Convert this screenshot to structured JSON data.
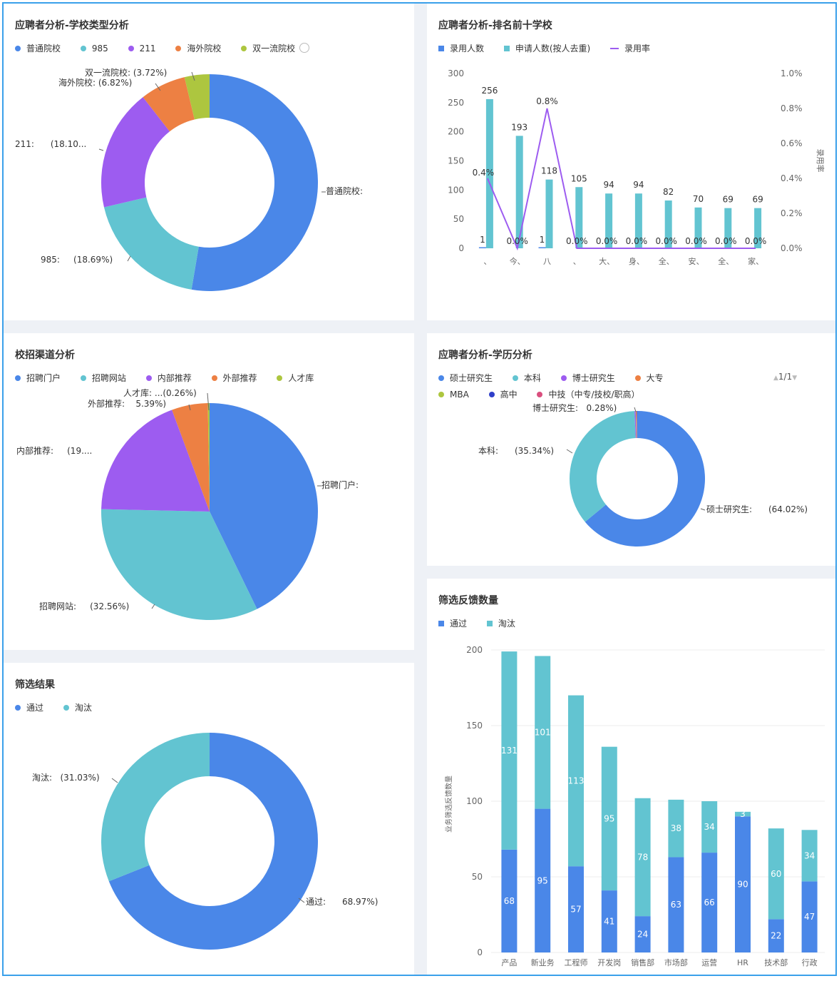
{
  "chart_data": [
    {
      "type": "pie",
      "title": "应聘者分析-学校类型分析",
      "legend_suffix_icon": "more-circle-icon",
      "slices": [
        {
          "name": "普通院校",
          "value": 52.67,
          "label": "普通院校:",
          "color": "#4a87e8"
        },
        {
          "name": "985",
          "value": 18.69,
          "label": "985:",
          "pct": "(18.69%)",
          "color": "#62c4d1"
        },
        {
          "name": "211",
          "value": 18.1,
          "label": "211:",
          "pct": "(18.10...",
          "color": "#9d5cf0"
        },
        {
          "name": "海外院校",
          "value": 6.82,
          "label": "海外院校:",
          "pct": "(6.82%)",
          "color": "#ed8043"
        },
        {
          "name": "双一流院校",
          "value": 3.72,
          "label": "双一流院校:",
          "pct": "(3.72%)",
          "color": "#adc63f"
        }
      ]
    },
    {
      "type": "bar",
      "title": "应聘者分析-排名前十学校",
      "legend": [
        "录用人数",
        "申请人数(按人去重)",
        "录用率"
      ],
      "categories": [
        "..",
        "..",
        "..",
        "..",
        "..",
        "..",
        "..",
        "..",
        "..",
        ".."
      ],
      "x_tick_labels": [
        "、",
        "今、",
        "八",
        "、",
        "大、",
        "身、",
        "全、",
        "安、",
        "全、",
        "家、"
      ],
      "series": [
        {
          "name": "录用人数",
          "values": [
            1,
            0,
            1,
            0,
            0,
            0,
            0,
            0,
            0,
            0
          ],
          "labels": [
            "1",
            "",
            "1",
            "",
            "",
            "",
            "",
            "",
            "",
            ""
          ],
          "color": "#4a87e8"
        },
        {
          "name": "申请人数(按人去重)",
          "values": [
            256,
            193,
            118,
            105,
            94,
            94,
            82,
            70,
            69,
            69
          ],
          "labels": [
            "256",
            "193",
            "118",
            "105",
            "94",
            "94",
            "82",
            "70",
            "69",
            "69"
          ],
          "color": "#62c4d1"
        },
        {
          "name": "录用率",
          "axis": "right",
          "values": [
            0.4,
            0.0,
            0.8,
            0.0,
            0.0,
            0.0,
            0.0,
            0.0,
            0.0,
            0.0
          ],
          "labels": [
            "0.4%",
            "0.0%",
            "0.8%",
            "0.0%",
            "0.0%",
            "0.0%",
            "0.0%",
            "0.0%",
            "0.0%",
            "0.0%"
          ],
          "color": "#9d5cf0"
        }
      ],
      "ylim": [
        0,
        300
      ],
      "y_ticks": [
        "0",
        "50",
        "100",
        "150",
        "200",
        "250",
        "300"
      ],
      "y2lim": [
        0,
        1.0
      ],
      "y2_ticks": [
        "0.0%",
        "0.2%",
        "0.4%",
        "0.6%",
        "0.8%",
        "1.0%"
      ],
      "y2label": "录用率"
    },
    {
      "type": "pie",
      "title": "校招渠道分析",
      "slices": [
        {
          "name": "招聘门户",
          "value": 42.79,
          "label": "招聘门户:",
          "color": "#4a87e8"
        },
        {
          "name": "招聘网站",
          "value": 32.56,
          "label": "招聘网站:",
          "pct": "(32.56%)",
          "color": "#62c4d1"
        },
        {
          "name": "内部推荐",
          "value": 19.0,
          "label": "内部推荐:",
          "pct": "(19....",
          "color": "#9d5cf0"
        },
        {
          "name": "外部推荐",
          "value": 5.39,
          "label": "外部推荐:",
          "pct": "5.39%)",
          "color": "#ed8043"
        },
        {
          "name": "人才库",
          "value": 0.26,
          "label": "人才库:",
          "pct": "...(0.26%)",
          "color": "#adc63f"
        }
      ]
    },
    {
      "type": "pie",
      "title": "应聘者分析-学历分析",
      "pager": "1/1",
      "slices": [
        {
          "name": "硕士研究生",
          "value": 64.02,
          "label": "硕士研究生:",
          "pct": "(64.02%)",
          "color": "#4a87e8"
        },
        {
          "name": "本科",
          "value": 35.34,
          "label": "本科:",
          "pct": "(35.34%)",
          "color": "#62c4d1"
        },
        {
          "name": "博士研究生",
          "value": 0.28,
          "label": "博士研究生:",
          "pct": "0.28%)",
          "color": "#9d5cf0"
        },
        {
          "name": "大专",
          "value": 0.1,
          "color": "#ed8043"
        },
        {
          "name": "MBA",
          "value": 0.1,
          "color": "#adc63f"
        },
        {
          "name": "高中",
          "value": 0.08,
          "color": "#2f3fc9"
        },
        {
          "name": "中技（中专/技校/职高）",
          "value": 0.08,
          "color": "#d94f7e"
        }
      ]
    },
    {
      "type": "pie",
      "title": "筛选结果",
      "slices": [
        {
          "name": "通过",
          "value": 68.97,
          "label": "通过:",
          "pct": "68.97%)",
          "color": "#4a87e8"
        },
        {
          "name": "淘汰",
          "value": 31.03,
          "label": "淘汰:",
          "pct": "(31.03%)",
          "color": "#62c4d1"
        }
      ]
    },
    {
      "type": "bar",
      "stacked": true,
      "title": "筛选反馈数量",
      "legend": [
        "通过",
        "淘汰"
      ],
      "categories": [
        "..",
        "..",
        "..",
        "..",
        "..",
        "..",
        "..",
        "..",
        "..",
        ".."
      ],
      "x_tick_labels": [
        "产品",
        "新业务",
        "工程师",
        "开发岗",
        "销售部",
        "市场部",
        "运营",
        "HR",
        "技术部",
        "行政"
      ],
      "series": [
        {
          "name": "通过",
          "values": [
            68,
            95,
            57,
            41,
            24,
            63,
            66,
            90,
            22,
            47
          ],
          "labels": [
            "68",
            "95",
            "57",
            "41",
            "24",
            "63",
            "66",
            "90",
            "22",
            "47"
          ],
          "color": "#4a87e8"
        },
        {
          "name": "淘汰",
          "values": [
            131,
            101,
            113,
            95,
            78,
            38,
            34,
            3,
            60,
            34
          ],
          "labels": [
            "131",
            "101",
            "113",
            "95",
            "78",
            "38",
            "34",
            "3",
            "60",
            "34"
          ],
          "color": "#62c4d1"
        }
      ],
      "ylim": [
        0,
        200
      ],
      "y_ticks": [
        "0",
        "50",
        "100",
        "150",
        "200"
      ],
      "ylabel": "业务筛选反馈数量"
    }
  ]
}
